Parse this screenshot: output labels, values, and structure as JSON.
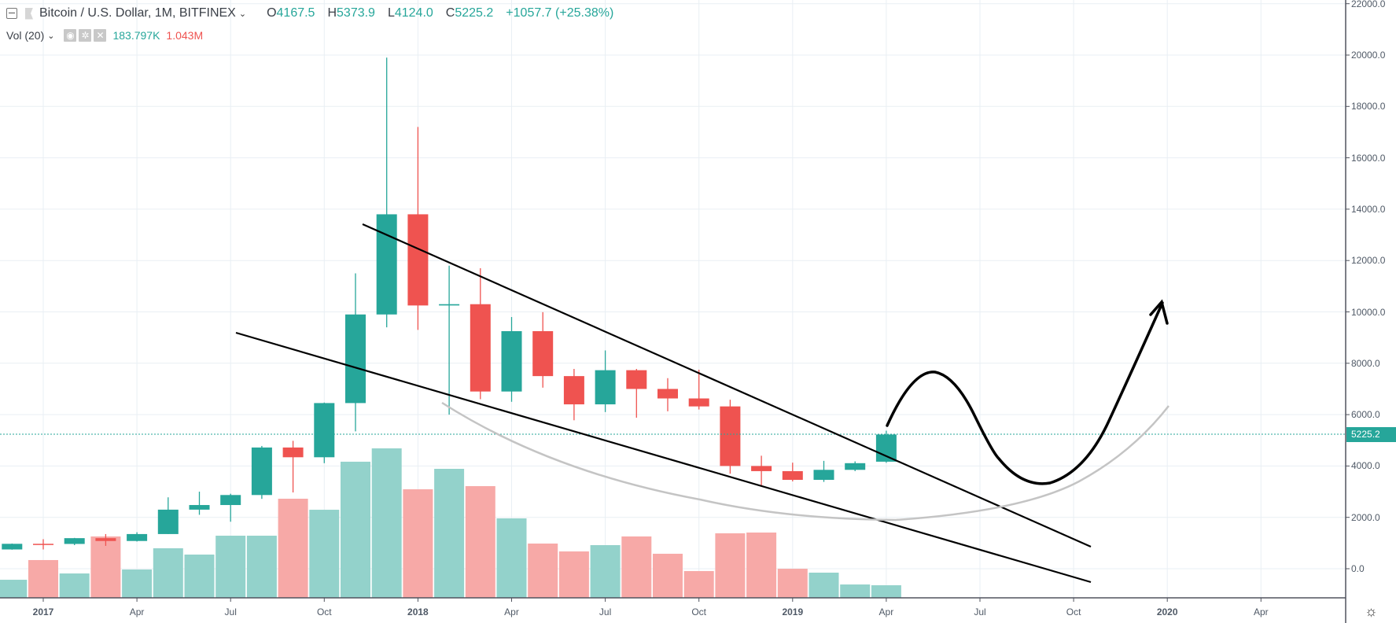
{
  "legend": {
    "title": "Bitcoin / U.S. Dollar, 1M, BITFINEX",
    "open_label": "O",
    "open": "4167.5",
    "high_label": "H",
    "high": "5373.9",
    "low_label": "L",
    "low": "4124.0",
    "close_label": "C",
    "close": "5225.2",
    "change": "+1057.7 (+25.38%)",
    "vol_title": "Vol (20)",
    "vol_value": "183.797K",
    "vol_ma": "1.043M"
  },
  "last_price_label": "5225.2",
  "colors": {
    "up": "#26a69a",
    "down": "#ef5350",
    "vol_up": "#93d2cb",
    "vol_down": "#f7a9a7",
    "grid": "#e9eff4"
  },
  "chart_data": {
    "type": "candlestick",
    "title": "Bitcoin / U.S. Dollar, 1M, BITFINEX",
    "ylim": [
      -1300,
      22000
    ],
    "y_ticks": [
      "22000.0",
      "20000.0",
      "18000.0",
      "16000.0",
      "14000.0",
      "12000.0",
      "10000.0",
      "8000.0",
      "6000.0",
      "4000.0",
      "2000.0",
      "0.0"
    ],
    "y_tick_values": [
      22000,
      20000,
      18000,
      16000,
      14000,
      12000,
      10000,
      8000,
      6000,
      4000,
      2000,
      0
    ],
    "x_ticks": [
      {
        "label": "2017",
        "month": 0,
        "bold": true
      },
      {
        "label": "Apr",
        "month": 3
      },
      {
        "label": "Jul",
        "month": 6
      },
      {
        "label": "Oct",
        "month": 9
      },
      {
        "label": "2018",
        "month": 12,
        "bold": true
      },
      {
        "label": "Apr",
        "month": 15
      },
      {
        "label": "Jul",
        "month": 18
      },
      {
        "label": "Oct",
        "month": 21
      },
      {
        "label": "2019",
        "month": 24,
        "bold": true
      },
      {
        "label": "Apr",
        "month": 27
      },
      {
        "label": "Jul",
        "month": 30
      },
      {
        "label": "Oct",
        "month": 33
      },
      {
        "label": "2020",
        "month": 36,
        "bold": true
      },
      {
        "label": "Apr",
        "month": 39
      }
    ],
    "candles": [
      {
        "m": "2016-12",
        "o": 750,
        "h": 980,
        "l": 740,
        "c": 970,
        "v": 264
      },
      {
        "m": "2017-01",
        "o": 970,
        "h": 1150,
        "l": 750,
        "c": 965,
        "v": 552
      },
      {
        "m": "2017-02",
        "o": 965,
        "h": 1200,
        "l": 920,
        "c": 1190,
        "v": 356
      },
      {
        "m": "2017-03",
        "o": 1190,
        "h": 1350,
        "l": 890,
        "c": 1080,
        "v": 897
      },
      {
        "m": "2017-04",
        "o": 1080,
        "h": 1420,
        "l": 1060,
        "c": 1350,
        "v": 414
      },
      {
        "m": "2017-05",
        "o": 1350,
        "h": 2780,
        "l": 1350,
        "c": 2300,
        "v": 724
      },
      {
        "m": "2017-06",
        "o": 2300,
        "h": 3000,
        "l": 2100,
        "c": 2480,
        "v": 632
      },
      {
        "m": "2017-07",
        "o": 2480,
        "h": 2920,
        "l": 1830,
        "c": 2870,
        "v": 908
      },
      {
        "m": "2017-08",
        "o": 2870,
        "h": 4780,
        "l": 2720,
        "c": 4720,
        "v": 908
      },
      {
        "m": "2017-09",
        "o": 4720,
        "h": 4980,
        "l": 2970,
        "c": 4340,
        "v": 1448
      },
      {
        "m": "2017-10",
        "o": 4340,
        "h": 6470,
        "l": 4110,
        "c": 6450,
        "v": 1287
      },
      {
        "m": "2017-11",
        "o": 6450,
        "h": 11500,
        "l": 5350,
        "c": 9900,
        "v": 1989
      },
      {
        "m": "2017-12",
        "o": 9900,
        "h": 19900,
        "l": 9400,
        "c": 13800,
        "v": 2184
      },
      {
        "m": "2018-01",
        "o": 13800,
        "h": 17200,
        "l": 9300,
        "c": 10250,
        "v": 1586
      },
      {
        "m": "2018-02",
        "o": 10250,
        "h": 11800,
        "l": 6000,
        "c": 10300,
        "v": 1885
      },
      {
        "m": "2018-03",
        "o": 10300,
        "h": 11700,
        "l": 6600,
        "c": 6900,
        "v": 1632
      },
      {
        "m": "2018-04",
        "o": 6900,
        "h": 9800,
        "l": 6500,
        "c": 9250,
        "v": 1161
      },
      {
        "m": "2018-05",
        "o": 9250,
        "h": 9990,
        "l": 7050,
        "c": 7500,
        "v": 793
      },
      {
        "m": "2018-06",
        "o": 7500,
        "h": 7780,
        "l": 5780,
        "c": 6400,
        "v": 678
      },
      {
        "m": "2018-07",
        "o": 6400,
        "h": 8500,
        "l": 6100,
        "c": 7730,
        "v": 770
      },
      {
        "m": "2018-08",
        "o": 7730,
        "h": 7780,
        "l": 5880,
        "c": 7000,
        "v": 897
      },
      {
        "m": "2018-09",
        "o": 7000,
        "h": 7420,
        "l": 6130,
        "c": 6630,
        "v": 644
      },
      {
        "m": "2018-10",
        "o": 6630,
        "h": 7750,
        "l": 6200,
        "c": 6320,
        "v": 391
      },
      {
        "m": "2018-11",
        "o": 6320,
        "h": 6580,
        "l": 3700,
        "c": 4000,
        "v": 943
      },
      {
        "m": "2018-12",
        "o": 4000,
        "h": 4400,
        "l": 3200,
        "c": 3800,
        "v": 954
      },
      {
        "m": "2019-01",
        "o": 3800,
        "h": 4130,
        "l": 3400,
        "c": 3460,
        "v": 425
      },
      {
        "m": "2019-02",
        "o": 3460,
        "h": 4200,
        "l": 3380,
        "c": 3850,
        "v": 368
      },
      {
        "m": "2019-03",
        "o": 3850,
        "h": 4180,
        "l": 3800,
        "c": 4110,
        "v": 195
      },
      {
        "m": "2019-04",
        "o": 4167.5,
        "h": 5373.9,
        "l": 4124.0,
        "c": 5225.2,
        "v": 183.797
      }
    ],
    "volume_unit": "K",
    "last_price": 5225.2
  }
}
